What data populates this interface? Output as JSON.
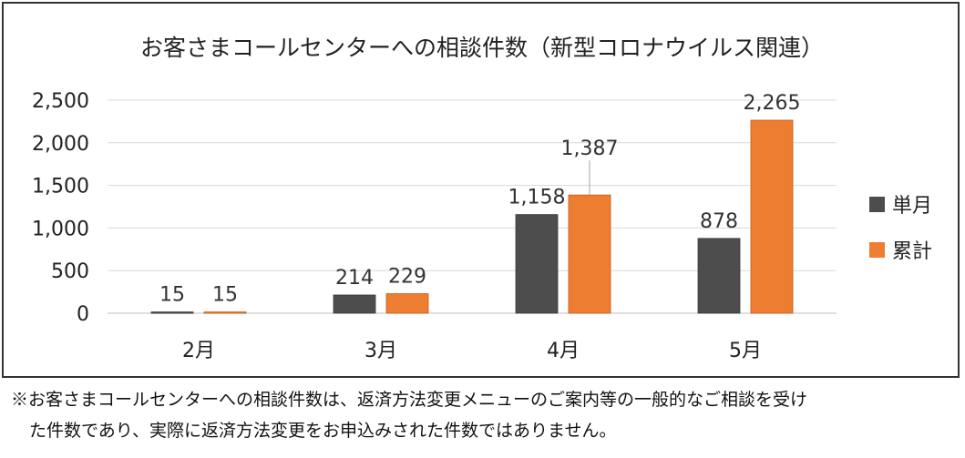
{
  "chart_data": {
    "type": "bar",
    "title": "お客さまコールセンターへの相談件数（新型コロナウイルス関連）",
    "categories": [
      "2月",
      "3月",
      "4月",
      "5月"
    ],
    "series": [
      {
        "name": "単月",
        "values": [
          15,
          214,
          1158,
          878
        ],
        "color": "#4d4d4d"
      },
      {
        "name": "累計",
        "values": [
          15,
          229,
          1387,
          2265
        ],
        "color": "#ed7d31"
      }
    ],
    "data_labels": [
      [
        "15",
        "214",
        "1,158",
        "878"
      ],
      [
        "15",
        "229",
        "1,387",
        "2,265"
      ]
    ],
    "y_ticks": [
      0,
      500,
      1000,
      1500,
      2000,
      2500
    ],
    "y_tick_labels": [
      "0",
      "500",
      "1,000",
      "1,500",
      "2,000",
      "2,500"
    ],
    "ylim": [
      0,
      2500
    ],
    "grid": true,
    "legend_position": "right",
    "xlabel": "",
    "ylabel": ""
  },
  "notes": {
    "line1": "※お客さまコールセンターへの相談件数は、返済方法変更メニューのご案内等の一般的なご相談を受け",
    "line2": "た件数であり、実際に返済方法変更をお申込みされた件数ではありません。"
  }
}
